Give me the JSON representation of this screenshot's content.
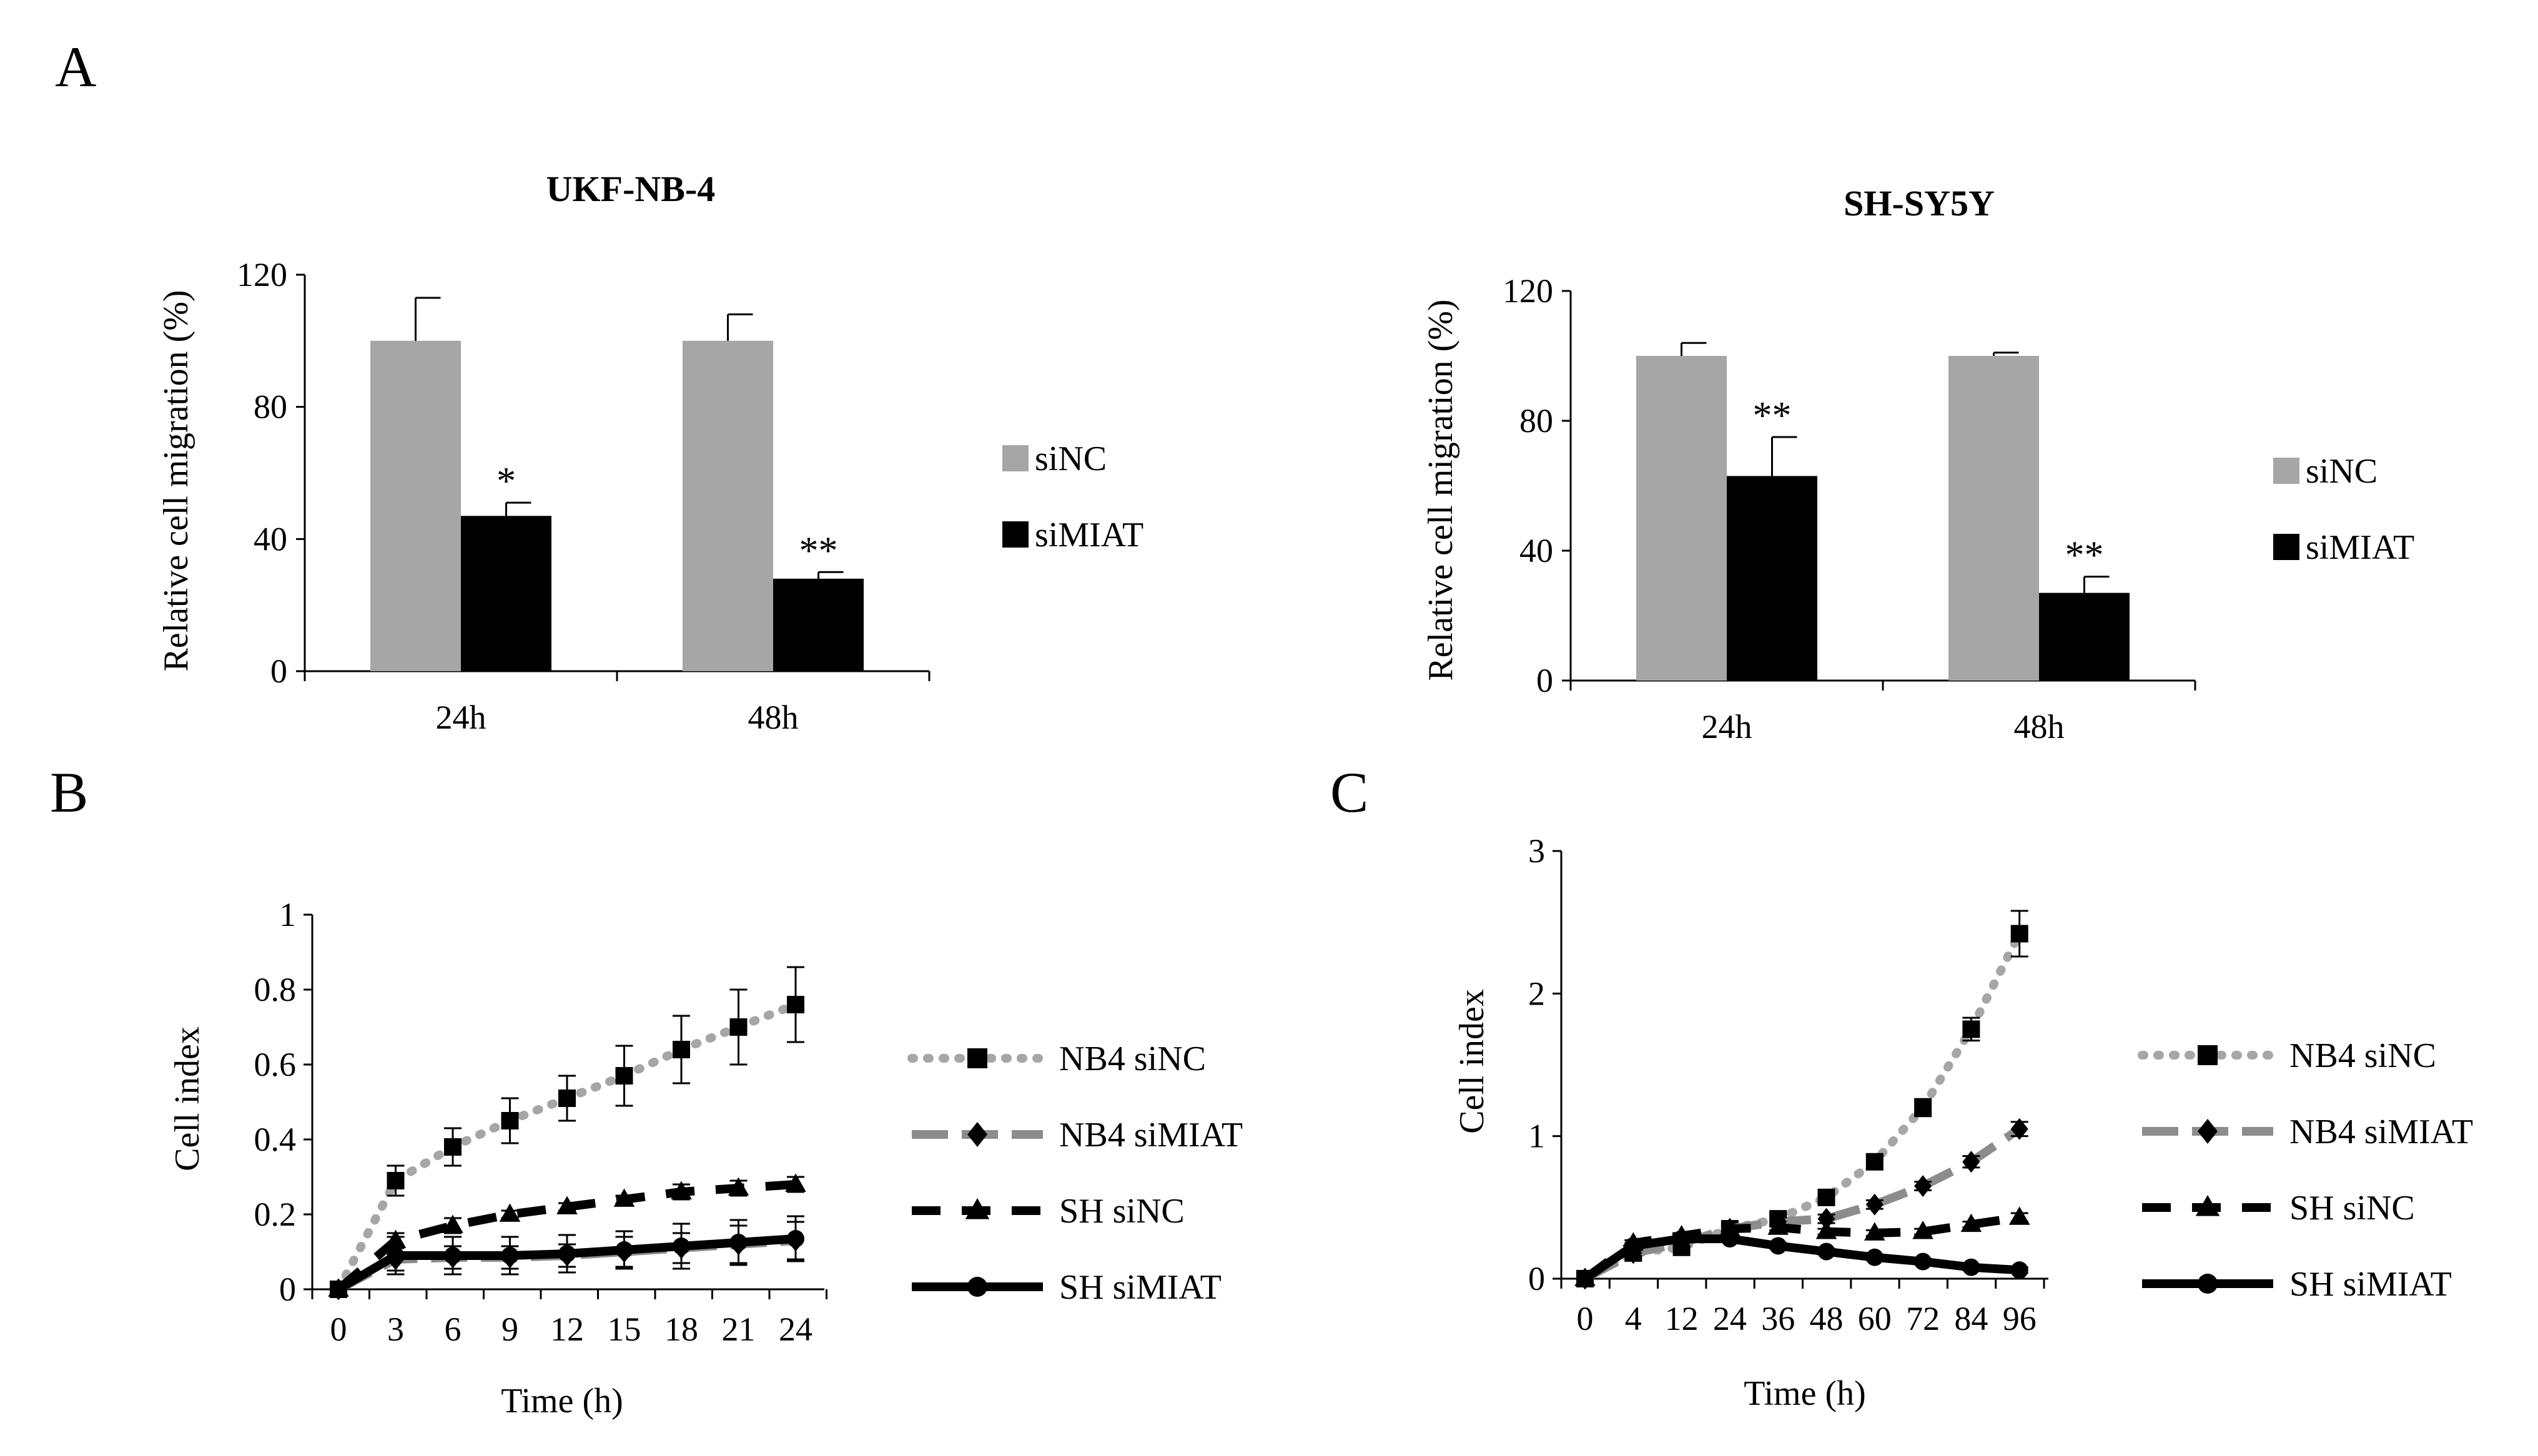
{
  "panels": [
    {
      "letter": "A"
    },
    {
      "letter": "B"
    },
    {
      "letter": "C"
    }
  ],
  "chart_data": [
    {
      "id": "A1",
      "type": "bar",
      "title": "UKF-NB-4",
      "ylabel": "Relative cell migration (%)",
      "xlabel": "",
      "categories": [
        "24h",
        "48h"
      ],
      "ylim": [
        0,
        120
      ],
      "yticks": [
        0,
        40,
        80,
        120
      ],
      "series": [
        {
          "name": "siNC",
          "color": "#a6a6a6",
          "values": [
            100,
            100
          ],
          "errors": [
            13,
            8
          ],
          "sig": [
            "",
            ""
          ]
        },
        {
          "name": "siMIAT",
          "color": "#000000",
          "values": [
            47,
            28
          ],
          "errors": [
            4,
            2
          ],
          "sig": [
            "*",
            "**"
          ]
        }
      ],
      "legend_position": "right"
    },
    {
      "id": "A2",
      "type": "bar",
      "title": "SH-SY5Y",
      "ylabel": "Relative cell migration (%)",
      "xlabel": "",
      "categories": [
        "24h",
        "48h"
      ],
      "ylim": [
        0,
        120
      ],
      "yticks": [
        0,
        40,
        80,
        120
      ],
      "series": [
        {
          "name": "siNC",
          "color": "#a6a6a6",
          "values": [
            100,
            100
          ],
          "errors": [
            4,
            1
          ],
          "sig": [
            "",
            ""
          ]
        },
        {
          "name": "siMIAT",
          "color": "#000000",
          "values": [
            63,
            27
          ],
          "errors": [
            12,
            5
          ],
          "sig": [
            "**",
            "**"
          ]
        }
      ],
      "legend_position": "right"
    },
    {
      "id": "B",
      "type": "line",
      "title": "",
      "xlabel": "Time (h)",
      "ylabel": "Cell index",
      "x": [
        0,
        3,
        6,
        9,
        12,
        15,
        18,
        21,
        24
      ],
      "xticks": [
        "0",
        "3",
        "6",
        "9",
        "12",
        "15",
        "18",
        "21",
        "24"
      ],
      "ylim": [
        0,
        1
      ],
      "yticks": [
        "0",
        "0.2",
        "0.4",
        "0.6",
        "0.8",
        "1"
      ],
      "series": [
        {
          "name": "NB4 siNC",
          "color": "#a6a6a6",
          "dash": "dot",
          "marker": "square",
          "values": [
            0,
            0.29,
            0.38,
            0.45,
            0.51,
            0.57,
            0.64,
            0.7,
            0.76
          ],
          "errors": [
            0.01,
            0.04,
            0.05,
            0.06,
            0.06,
            0.08,
            0.09,
            0.1,
            0.1
          ]
        },
        {
          "name": "NB4 siMIAT",
          "color": "#8c8c8c",
          "dash": "longdash",
          "marker": "diamond",
          "values": [
            0,
            0.08,
            0.085,
            0.085,
            0.09,
            0.1,
            0.11,
            0.12,
            0.13
          ],
          "errors": [
            0.01,
            0.03,
            0.03,
            0.03,
            0.03,
            0.04,
            0.04,
            0.05,
            0.05
          ]
        },
        {
          "name": "SH siNC",
          "color": "#000000",
          "dash": "dash",
          "marker": "triangle",
          "values": [
            0,
            0.13,
            0.17,
            0.2,
            0.22,
            0.24,
            0.26,
            0.27,
            0.28
          ],
          "errors": [
            0.01,
            0.02,
            0.02,
            0.01,
            0.01,
            0.01,
            0.02,
            0.02,
            0.02
          ]
        },
        {
          "name": "SH siMIAT",
          "color": "#000000",
          "dash": "solid",
          "marker": "circle",
          "values": [
            0,
            0.09,
            0.09,
            0.09,
            0.095,
            0.105,
            0.115,
            0.125,
            0.135
          ],
          "errors": [
            0.01,
            0.05,
            0.05,
            0.05,
            0.05,
            0.05,
            0.06,
            0.06,
            0.06
          ]
        }
      ],
      "legend_position": "right"
    },
    {
      "id": "C",
      "type": "line",
      "title": "",
      "xlabel": "Time (h)",
      "ylabel": "Cell index",
      "x": [
        0,
        4,
        12,
        24,
        36,
        48,
        60,
        72,
        84,
        96
      ],
      "xticks": [
        "0",
        "4",
        "12",
        "24",
        "36",
        "48",
        "60",
        "72",
        "84",
        "96"
      ],
      "ylim": [
        0,
        3
      ],
      "yticks": [
        "0",
        "1",
        "2",
        "3"
      ],
      "series": [
        {
          "name": "NB4 siNC",
          "color": "#a6a6a6",
          "dash": "dot",
          "marker": "square",
          "values": [
            0,
            0.18,
            0.22,
            0.35,
            0.42,
            0.57,
            0.82,
            1.2,
            1.75,
            2.42
          ],
          "errors": [
            0.01,
            0.03,
            0.03,
            0.03,
            0.03,
            0.04,
            0.05,
            0.06,
            0.08,
            0.16
          ]
        },
        {
          "name": "NB4 siMIAT",
          "color": "#8c8c8c",
          "dash": "longdash",
          "marker": "diamond",
          "values": [
            0,
            0.18,
            0.25,
            0.35,
            0.4,
            0.42,
            0.52,
            0.65,
            0.82,
            1.05
          ],
          "errors": [
            0.01,
            0.02,
            0.02,
            0.02,
            0.03,
            0.03,
            0.03,
            0.03,
            0.04,
            0.05
          ]
        },
        {
          "name": "SH siNC",
          "color": "#000000",
          "dash": "dash",
          "marker": "triangle",
          "values": [
            0,
            0.25,
            0.3,
            0.35,
            0.36,
            0.33,
            0.32,
            0.33,
            0.38,
            0.43
          ],
          "errors": [
            0.01,
            0.02,
            0.02,
            0.02,
            0.02,
            0.02,
            0.02,
            0.02,
            0.02,
            0.03
          ]
        },
        {
          "name": "SH siMIAT",
          "color": "#000000",
          "dash": "solid",
          "marker": "circle",
          "values": [
            0,
            0.23,
            0.28,
            0.28,
            0.23,
            0.19,
            0.15,
            0.12,
            0.08,
            0.06
          ],
          "errors": [
            0.01,
            0.02,
            0.02,
            0.02,
            0.02,
            0.02,
            0.02,
            0.02,
            0.02,
            0.02
          ]
        }
      ],
      "legend_position": "right"
    }
  ]
}
